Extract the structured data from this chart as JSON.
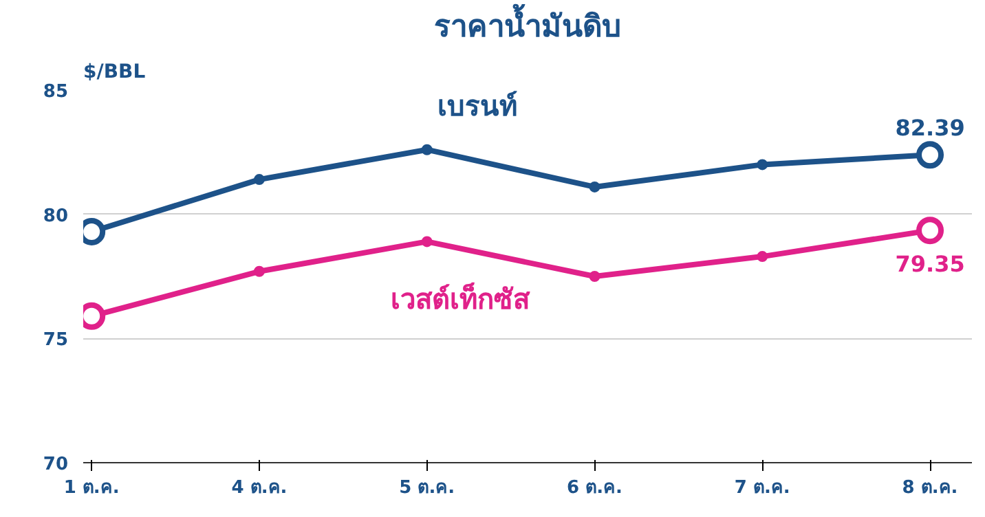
{
  "chart_data": {
    "type": "line",
    "title": "ราคาน้ำมันดิบ",
    "ylabel": "$/BBL",
    "categories": [
      "1 ต.ค.",
      "4 ต.ค.",
      "5 ต.ค.",
      "6 ต.ค.",
      "7 ต.ค.",
      "8 ต.ค."
    ],
    "series": [
      {
        "name": "เบรนท์",
        "color": "#1d5289",
        "values": [
          79.3,
          81.4,
          82.6,
          81.1,
          82.0,
          82.39
        ],
        "value_labels": [
          null,
          null,
          null,
          null,
          null,
          "82.39"
        ]
      },
      {
        "name": "เวสต์เท็กซัส",
        "color": "#e0218a",
        "values": [
          75.9,
          77.7,
          78.9,
          77.5,
          78.3,
          79.35
        ],
        "value_labels": [
          null,
          null,
          null,
          null,
          null,
          "79.35"
        ]
      }
    ],
    "ylim": [
      70,
      85
    ],
    "yticks": [
      70,
      75,
      80,
      85
    ],
    "grid": "y",
    "marker": "circle",
    "line_style": "solid"
  }
}
